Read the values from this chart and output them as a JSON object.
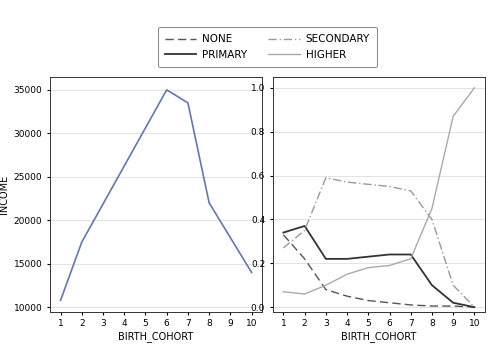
{
  "left_panel": {
    "x": [
      1,
      2,
      6,
      7,
      8,
      10
    ],
    "y": [
      10800,
      17500,
      35000,
      33500,
      22000,
      14000
    ],
    "color": "#6677aa",
    "xlabel": "BIRTH_COHORT",
    "ylabel": "INCOME",
    "xlim": [
      0.5,
      10.5
    ],
    "ylim": [
      9500,
      36500
    ],
    "yticks": [
      10000,
      15000,
      20000,
      25000,
      30000,
      35000
    ],
    "xticks": [
      1,
      2,
      3,
      4,
      5,
      6,
      7,
      8,
      9,
      10
    ]
  },
  "right_panel": {
    "none": {
      "x": [
        1,
        2,
        3,
        4,
        5,
        6,
        7,
        8,
        9,
        10
      ],
      "y": [
        0.33,
        0.22,
        0.08,
        0.05,
        0.03,
        0.02,
        0.01,
        0.005,
        0.005,
        0.0
      ],
      "color": "#555555",
      "linestyle": "dashed"
    },
    "primary": {
      "x": [
        1,
        2,
        3,
        4,
        5,
        6,
        7,
        8,
        9,
        10
      ],
      "y": [
        0.34,
        0.37,
        0.22,
        0.22,
        0.23,
        0.24,
        0.24,
        0.1,
        0.02,
        0.0
      ],
      "color": "#333333",
      "linestyle": "solid"
    },
    "secondary": {
      "x": [
        1,
        2,
        3,
        4,
        5,
        6,
        7,
        8,
        9,
        10
      ],
      "y": [
        0.27,
        0.35,
        0.59,
        0.57,
        0.56,
        0.55,
        0.53,
        0.4,
        0.1,
        0.0
      ],
      "color": "#999999",
      "linestyle": "dashdot"
    },
    "higher": {
      "x": [
        1,
        2,
        3,
        4,
        5,
        6,
        7,
        8,
        9,
        10
      ],
      "y": [
        0.07,
        0.06,
        0.1,
        0.15,
        0.18,
        0.19,
        0.22,
        0.45,
        0.87,
        1.0
      ],
      "color": "#aaaaaa",
      "linestyle": "solid"
    },
    "xlabel": "BIRTH_COHORT",
    "xlim": [
      0.5,
      10.5
    ],
    "ylim": [
      -0.02,
      1.05
    ],
    "yticks": [
      0.0,
      0.2,
      0.4,
      0.6,
      0.8,
      1.0
    ],
    "xticks": [
      1,
      2,
      3,
      4,
      5,
      6,
      7,
      8,
      9,
      10
    ]
  },
  "legend": {
    "none_label": "NONE",
    "primary_label": "PRIMARY",
    "secondary_label": "SECONDARY",
    "higher_label": "HIGHER"
  },
  "background_color": "#ffffff",
  "grid_color": "#d8d8d8"
}
